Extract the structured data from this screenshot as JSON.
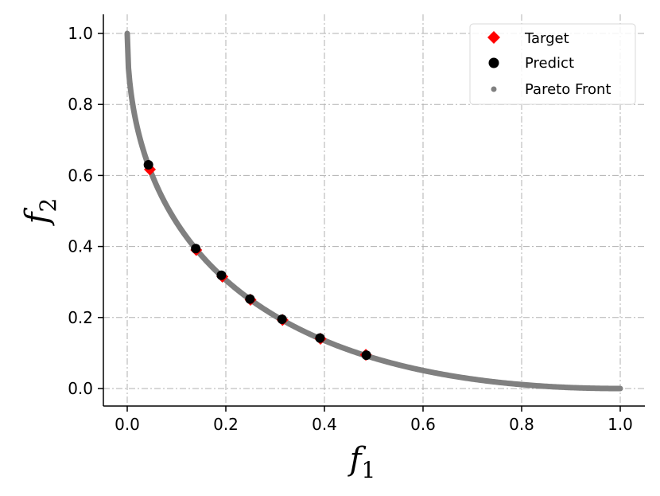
{
  "chart_data": {
    "type": "scatter",
    "xlabel": "f",
    "xlabel_sub": "1",
    "ylabel": "f",
    "ylabel_sub": "2",
    "xlim": [
      -0.05,
      1.05
    ],
    "ylim": [
      -0.05,
      1.05
    ],
    "xticks": [
      0.0,
      0.2,
      0.4,
      0.6,
      0.8,
      1.0
    ],
    "yticks": [
      0.0,
      0.2,
      0.4,
      0.6,
      0.8,
      1.0
    ],
    "xtick_labels": [
      "0.0",
      "0.2",
      "0.4",
      "0.6",
      "0.8",
      "1.0"
    ],
    "ytick_labels": [
      "0.0",
      "0.2",
      "0.4",
      "0.6",
      "0.8",
      "1.0"
    ],
    "grid": true,
    "legend_position": "top-right",
    "series": [
      {
        "name": "Target",
        "marker": "diamond",
        "color": "#ff0000",
        "x": [
          0.046,
          0.14,
          0.193,
          0.25,
          0.315,
          0.392,
          0.484
        ],
        "y": [
          0.617,
          0.39,
          0.315,
          0.25,
          0.193,
          0.14,
          0.095
        ]
      },
      {
        "name": "Predict",
        "marker": "circle",
        "color": "#000000",
        "x": [
          0.043,
          0.139,
          0.191,
          0.249,
          0.314,
          0.391,
          0.485
        ],
        "y": [
          0.63,
          0.394,
          0.319,
          0.252,
          0.195,
          0.142,
          0.094
        ]
      },
      {
        "name": "Pareto Front",
        "marker": "dot",
        "color": "#808080",
        "function": "(1 - sqrt(x))^2",
        "x_range": [
          0.0,
          1.0
        ]
      }
    ]
  }
}
